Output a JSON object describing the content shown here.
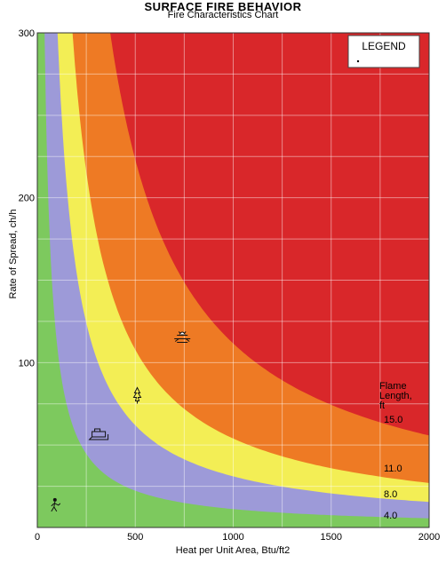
{
  "title": "SURFACE FIRE BEHAVIOR",
  "subtitle": "Fire Characteristics Chart",
  "chart_data": {
    "type": "area",
    "xlabel": "Heat per Unit Area, Btu/ft2",
    "ylabel": "Rate of Spread, ch/h",
    "xlim": [
      0,
      2000
    ],
    "ylim": [
      0,
      300
    ],
    "x_ticks": [
      "0",
      "500",
      "1000",
      "1500",
      "2000"
    ],
    "y_ticks": [
      "100",
      "200",
      "300"
    ],
    "grid": true,
    "legend_title": "LEGEND",
    "flame_length_title": [
      "Flame",
      "Length,",
      "ft"
    ],
    "flame_length_labels": [
      "15.0",
      "11.0",
      "8.0",
      "4.0"
    ],
    "boundary_curves": [
      {
        "label": "4.0",
        "k": 11160
      },
      {
        "label": "8.0",
        "k": 31000
      },
      {
        "label": "11.0",
        "k": 53940
      },
      {
        "label": "15.0",
        "k": 111600
      }
    ],
    "zone_colors": [
      "#7dc95e",
      "#9d9ad8",
      "#f3ee55",
      "#ee7a24",
      "#d9272a"
    ],
    "icons": [
      {
        "name": "walking-firefighter-icon",
        "x": 90,
        "y": 13
      },
      {
        "name": "dozer-icon",
        "x": 320,
        "y": 56
      },
      {
        "name": "tree-torching-icon",
        "x": 510,
        "y": 80
      },
      {
        "name": "aircraft-icon",
        "x": 740,
        "y": 115
      }
    ]
  }
}
